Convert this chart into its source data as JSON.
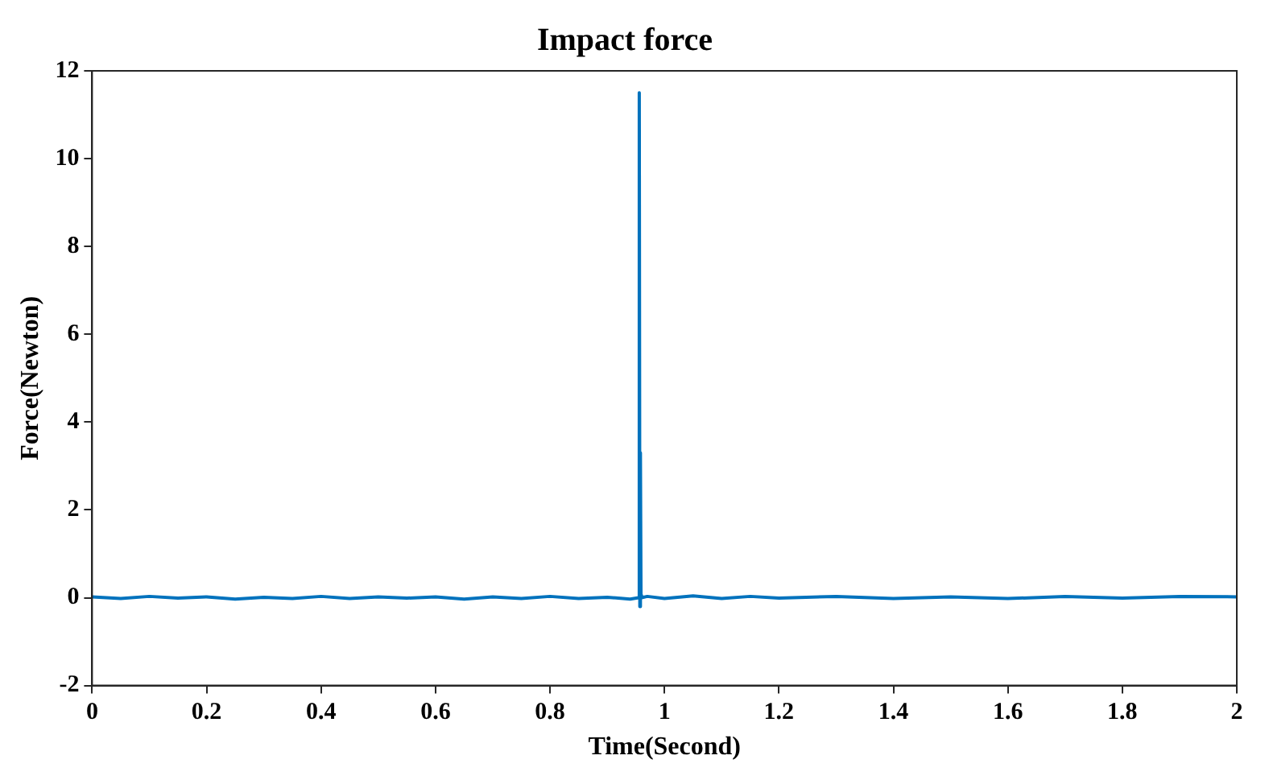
{
  "chart_data": {
    "type": "line",
    "title": "Impact force",
    "xlabel": "Time(Second)",
    "ylabel": "Force(Newton)",
    "xlim": [
      0,
      2
    ],
    "ylim": [
      -2,
      12
    ],
    "xticks": [
      0,
      0.2,
      0.4,
      0.6,
      0.8,
      1,
      1.2,
      1.4,
      1.6,
      1.8,
      2
    ],
    "yticks": [
      -2,
      0,
      2,
      4,
      6,
      8,
      10,
      12
    ],
    "grid": false,
    "marker": "none",
    "line_style": "solid",
    "series": [
      {
        "color": "#0072bd",
        "x": [
          0,
          0.05,
          0.1,
          0.15,
          0.2,
          0.25,
          0.3,
          0.35,
          0.4,
          0.45,
          0.5,
          0.55,
          0.6,
          0.65,
          0.7,
          0.75,
          0.8,
          0.85,
          0.9,
          0.94,
          0.955,
          0.956,
          0.957,
          0.958,
          0.959,
          0.96,
          0.97,
          1.0,
          1.05,
          1.1,
          1.15,
          1.2,
          1.3,
          1.4,
          1.5,
          1.6,
          1.7,
          1.8,
          1.9,
          2
        ],
        "values": [
          0.02,
          -0.02,
          0.03,
          -0.01,
          0.02,
          -0.03,
          0.01,
          -0.02,
          0.03,
          -0.02,
          0.02,
          -0.01,
          0.02,
          -0.03,
          0.02,
          -0.02,
          0.03,
          -0.02,
          0.01,
          -0.03,
          0,
          11.5,
          -0.2,
          3.3,
          0.05,
          0,
          0.03,
          -0.02,
          0.04,
          -0.02,
          0.03,
          -0.01,
          0.03,
          -0.02,
          0.02,
          -0.02,
          0.03,
          -0.01,
          0.03,
          0.02
        ]
      }
    ]
  }
}
